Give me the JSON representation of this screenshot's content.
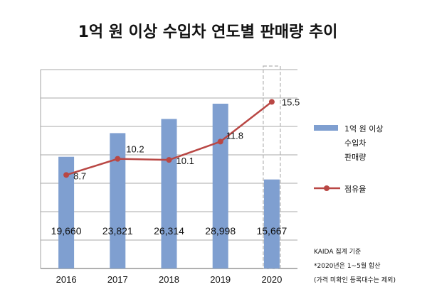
{
  "title": "1억 원 이상 수입차 연도별 판매량 추이",
  "colors": {
    "bar": "#7f9fd0",
    "line": "#b94744",
    "grid": "#8c8c8c",
    "axis": "#808080",
    "highlight_box": "#b0b0b0"
  },
  "chart_data": {
    "type": "bar",
    "categories": [
      "2016",
      "2017",
      "2018",
      "2019",
      "2020"
    ],
    "series": [
      {
        "name": "1억 원 이상 수입차 판매량",
        "chart": "bar",
        "values": [
          19660,
          23821,
          26314,
          28998,
          15667
        ],
        "value_labels": [
          "19,660",
          "23,821",
          "26,314",
          "28,998",
          "15,667"
        ]
      },
      {
        "name": "점유율",
        "chart": "line",
        "values": [
          8.7,
          10.2,
          10.1,
          11.8,
          15.5
        ],
        "value_labels": [
          "8.7",
          "10.2",
          "10.1",
          "11.8",
          "15.5"
        ]
      }
    ],
    "grid": true,
    "legend_position": "right",
    "bar_axis_range": [
      0,
      35000
    ],
    "line_axis_range": [
      0,
      18.5
    ],
    "highlighted_category": "2020"
  },
  "legend": {
    "bar_lines": [
      "1억 원 이상",
      "수입차",
      "판매량"
    ],
    "line_label": "점유율"
  },
  "notes": [
    "KAIDA 집계 기준",
    "*2020년은 1~5월 합산",
    "(가격 미확인 등록대수는 제외)"
  ]
}
